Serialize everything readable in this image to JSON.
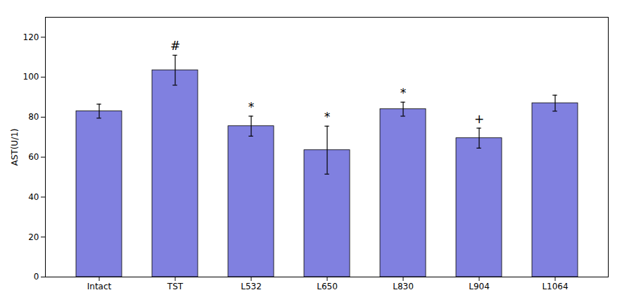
{
  "chart_data": {
    "type": "bar",
    "categories": [
      "Intact",
      "TST",
      "L532",
      "L650",
      "L830",
      "L904",
      "L1064"
    ],
    "values": [
      83,
      103.5,
      75.5,
      63.5,
      84,
      69.5,
      87
    ],
    "errors": [
      3.5,
      7.5,
      5,
      12,
      3.5,
      5,
      4
    ],
    "color": "#8080e0",
    "ylabel": "AST(U/1)",
    "ylim": [
      0,
      130
    ],
    "yticks": [
      0,
      20,
      40,
      60,
      80,
      100,
      120
    ],
    "annotations": [
      {
        "category": "TST",
        "text": "#"
      },
      {
        "category": "L532",
        "text": "*"
      },
      {
        "category": "L650",
        "text": "*"
      },
      {
        "category": "L830",
        "text": "*"
      },
      {
        "category": "L904",
        "text": "+"
      }
    ],
    "grid": false
  }
}
